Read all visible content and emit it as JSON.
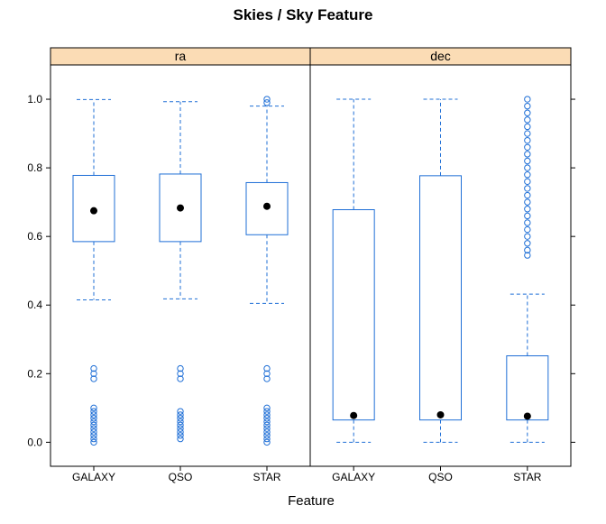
{
  "chart_data": {
    "type": "box",
    "title": "Skies / Sky Feature",
    "xlabel": "Feature",
    "ylabel": "",
    "ylim": [
      -0.07,
      1.1
    ],
    "yticks": [
      "0.0",
      "0.2",
      "0.4",
      "0.6",
      "0.8",
      "1.0"
    ],
    "categories": [
      "GALAXY",
      "QSO",
      "STAR"
    ],
    "colors": {
      "box": "#1f6fd6",
      "strip": "#fbdcb5",
      "median": "#000000"
    },
    "panels": [
      {
        "name": "ra",
        "boxes": [
          {
            "category": "GALAXY",
            "q1": 0.585,
            "q3": 0.778,
            "median": 0.675,
            "whisker_low": 0.415,
            "whisker_high": 0.999,
            "outliers": [
              0.0,
              0.01,
              0.02,
              0.03,
              0.04,
              0.05,
              0.06,
              0.07,
              0.08,
              0.09,
              0.1,
              0.185,
              0.2,
              0.215
            ]
          },
          {
            "category": "QSO",
            "q1": 0.585,
            "q3": 0.782,
            "median": 0.683,
            "whisker_low": 0.418,
            "whisker_high": 0.993,
            "outliers": [
              0.01,
              0.02,
              0.03,
              0.04,
              0.05,
              0.06,
              0.07,
              0.08,
              0.09,
              0.185,
              0.2,
              0.215
            ]
          },
          {
            "category": "STAR",
            "q1": 0.605,
            "q3": 0.757,
            "median": 0.688,
            "whisker_low": 0.405,
            "whisker_high": 0.98,
            "outliers": [
              0.0,
              0.01,
              0.02,
              0.03,
              0.04,
              0.05,
              0.06,
              0.07,
              0.08,
              0.09,
              0.1,
              0.185,
              0.2,
              0.215,
              0.99,
              1.0
            ]
          }
        ]
      },
      {
        "name": "dec",
        "boxes": [
          {
            "category": "GALAXY",
            "q1": 0.065,
            "q3": 0.678,
            "median": 0.078,
            "whisker_low": 0.0,
            "whisker_high": 1.0,
            "outliers": []
          },
          {
            "category": "QSO",
            "q1": 0.065,
            "q3": 0.777,
            "median": 0.08,
            "whisker_low": 0.0,
            "whisker_high": 1.0,
            "outliers": []
          },
          {
            "category": "STAR",
            "q1": 0.065,
            "q3": 0.252,
            "median": 0.076,
            "whisker_low": 0.0,
            "whisker_high": 0.432,
            "outliers": [
              0.545,
              0.56,
              0.58,
              0.6,
              0.62,
              0.64,
              0.66,
              0.68,
              0.7,
              0.72,
              0.74,
              0.76,
              0.78,
              0.8,
              0.82,
              0.84,
              0.86,
              0.88,
              0.9,
              0.92,
              0.94,
              0.96,
              0.98,
              1.0
            ]
          }
        ]
      }
    ]
  }
}
